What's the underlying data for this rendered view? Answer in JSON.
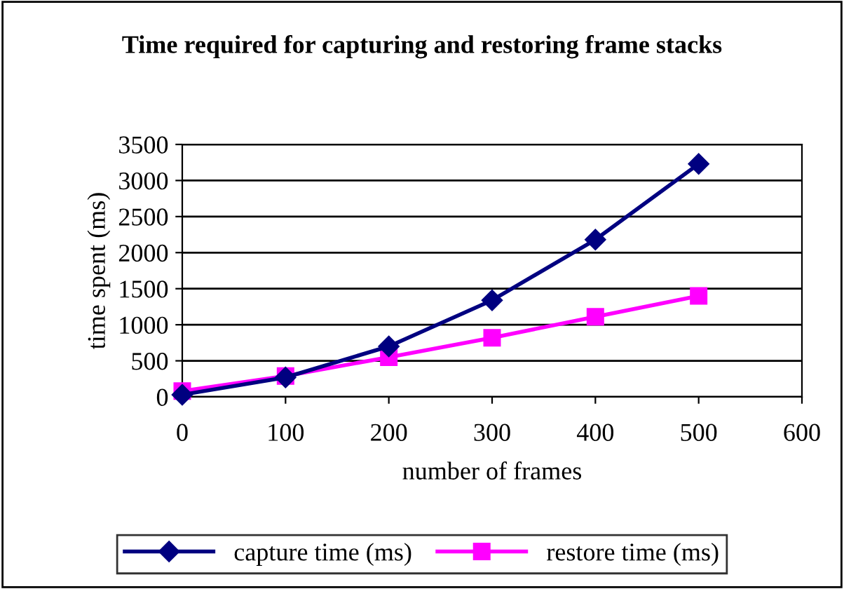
{
  "chart_data": {
    "type": "line",
    "title": "Time required for capturing and restoring frame stacks",
    "xlabel": "number of frames",
    "ylabel": "time spent (ms)",
    "x": [
      0,
      100,
      200,
      300,
      400,
      500
    ],
    "series": [
      {
        "name": "capture time (ms)",
        "color": "#000080",
        "marker": "diamond",
        "values": [
          30,
          270,
          700,
          1340,
          2180,
          3230
        ]
      },
      {
        "name": "restore time (ms)",
        "color": "#ff00ff",
        "marker": "square",
        "values": [
          80,
          290,
          550,
          820,
          1110,
          1400
        ]
      }
    ],
    "xlim": [
      0,
      600
    ],
    "xticks": [
      0,
      100,
      200,
      300,
      400,
      500,
      600
    ],
    "ylim": [
      0,
      3500
    ],
    "yticks": [
      0,
      500,
      1000,
      1500,
      2000,
      2500,
      3000,
      3500
    ],
    "grid": "y",
    "legend": "bottom",
    "line_style": "solid"
  }
}
